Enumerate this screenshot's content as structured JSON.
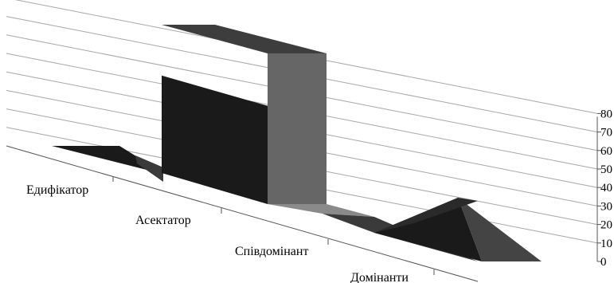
{
  "chart_data": {
    "type": "area",
    "style": "3d",
    "categories": [
      "Едифікатор",
      "Асектатор",
      "Співдомінант",
      "Домінанти"
    ],
    "ylim": [
      0,
      80
    ],
    "yticks": [
      0,
      10,
      20,
      30,
      40,
      50,
      60,
      70,
      80
    ],
    "grid": true,
    "series": [
      {
        "values": [
          0,
          0,
          85,
          4
        ],
        "color": "#1a1a1a"
      },
      {
        "values": [
          0,
          0,
          0,
          30
        ],
        "color": "#555555"
      }
    ],
    "colors": {
      "front": "#1a1a1a",
      "side": "#666666",
      "mid": "#3a3a3a",
      "light": "#8a8a8a",
      "grid": "#a8a8a8"
    }
  }
}
